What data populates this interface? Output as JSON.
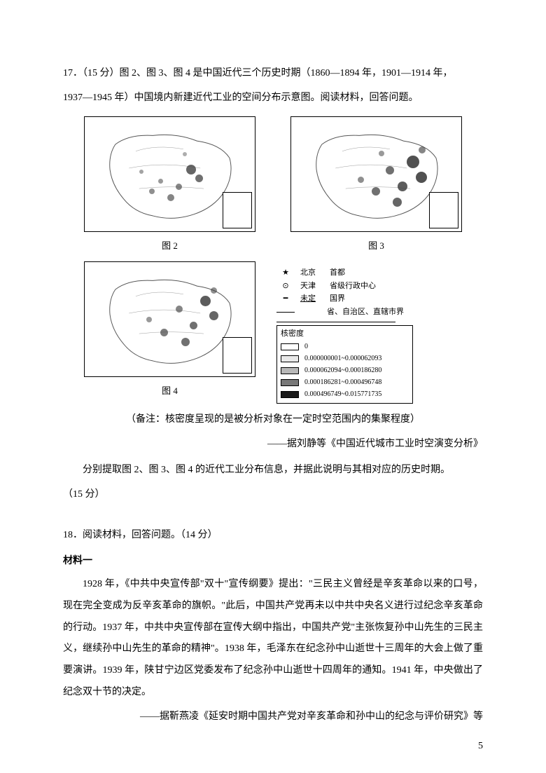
{
  "q17": {
    "intro_line1": "17．（15 分）图 2、图 3、图 4 是中国近代三个历史时期（1860—1894 年，1901—1914 年，",
    "intro_line2": "1937—1945 年）中国境内新建近代工业的空间分布示意图。阅读材料，回答问题。",
    "fig2_caption": "图 2",
    "fig3_caption": "图 3",
    "fig4_caption": "图 4",
    "note": "（备注：核密度呈现的是被分析对象在一定时空范围内的集聚程度）",
    "source": "——据刘静等《中国近代城市工业时空演变分析》",
    "task_line1": "分别提取图 2、图 3、图 4 的近代工业分布信息，并据此说明与其相对应的历史时期。",
    "task_line2": "（15 分）"
  },
  "legend": {
    "top_items": [
      {
        "symbol": "★",
        "label1": "北京",
        "label2": "首都"
      },
      {
        "symbol": "⊙",
        "label1": "天津",
        "label2": "省级行政中心"
      },
      {
        "symbol": "━",
        "label1": "未定",
        "label2": "国界"
      },
      {
        "symbol": "—",
        "label1": "",
        "label2": "省、自治区、直辖市界"
      }
    ],
    "density_title": "核密度",
    "density_items": [
      {
        "color": "#ffffff",
        "label": "0"
      },
      {
        "color": "#e8e8e8",
        "label": "0.000000001~0.000062093"
      },
      {
        "color": "#b8b8b8",
        "label": "0.000062094~0.000186280"
      },
      {
        "color": "#787878",
        "label": "0.000186281~0.000496748"
      },
      {
        "color": "#1a1a1a",
        "label": "0.000496749~0.015771735"
      }
    ]
  },
  "q18": {
    "header": "18．阅读材料，回答问题。（14 分）",
    "material_label": "材料一",
    "body_p1": "1928 年，《中共中央宣传部\"双十\"宣传纲要》提出：\"三民主义曾经是辛亥革命以来的口号，现在完全变成为反辛亥革命的旗帜。\"此后，中国共产党再未以中共中央名义进行过纪念辛亥革命的行动。1937 年，中共中央宣传部在宣传大纲中指出，中国共产党\"主张恢复孙中山先生的三民主义，继续孙中山先生的革命的精神\"。1938 年，毛泽东在纪念孙中山逝世十三周年的大会上做了重要演讲。1939 年，陕甘宁边区党委发布了纪念孙中山逝世十四周年的通知。1941 年，中央做出了纪念双十节的决定。",
    "body_source": "——据靳燕凌《延安时期中国共产党对辛亥革命和孙中山的纪念与评价研究》等"
  },
  "page_number": "5",
  "colors": {
    "text": "#000000",
    "background": "#ffffff"
  }
}
